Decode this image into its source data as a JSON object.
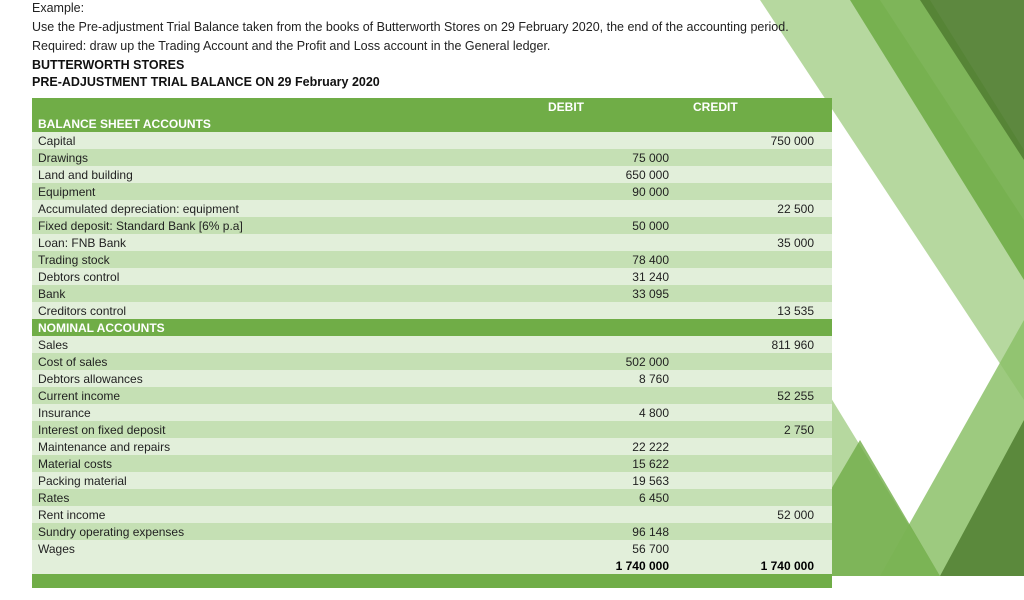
{
  "intro": {
    "line0": "Example:",
    "line1": "Use the Pre-adjustment Trial Balance taken from the books of Butterworth Stores on 29 February 2020, the end of the accounting period.",
    "line2": "Required: draw up the Trading Account and the Profit and Loss account in the General ledger.",
    "bold1": "BUTTERWORTH STORES",
    "bold2": "PRE-ADJUSTMENT TRIAL BALANCE ON 29 February 2020"
  },
  "table": {
    "header": {
      "debit": "DEBIT",
      "credit": "CREDIT"
    },
    "section1": "BALANCE SHEET ACCOUNTS",
    "section2": "NOMINAL ACCOUNTS",
    "rows1": [
      {
        "label": "Capital",
        "debit": "",
        "credit": "750 000",
        "shade": "light"
      },
      {
        "label": "Drawings",
        "debit": "75 000",
        "credit": "",
        "shade": "dark"
      },
      {
        "label": "Land and building",
        "debit": "650 000",
        "credit": "",
        "shade": "light"
      },
      {
        "label": "Equipment",
        "debit": "90 000",
        "credit": "",
        "shade": "dark"
      },
      {
        "label": "Accumulated depreciation: equipment",
        "debit": "",
        "credit": "22 500",
        "shade": "light"
      },
      {
        "label": "Fixed deposit: Standard Bank [6% p.a]",
        "debit": "50 000",
        "credit": "",
        "shade": "dark"
      },
      {
        "label": "Loan: FNB Bank",
        "debit": "",
        "credit": "35 000",
        "shade": "light"
      },
      {
        "label": "Trading stock",
        "debit": "78 400",
        "credit": "",
        "shade": "dark"
      },
      {
        "label": "Debtors control",
        "debit": "31 240",
        "credit": "",
        "shade": "light"
      },
      {
        "label": "Bank",
        "debit": "33 095",
        "credit": "",
        "shade": "dark"
      },
      {
        "label": "Creditors control",
        "debit": "",
        "credit": "13 535",
        "shade": "light"
      }
    ],
    "rows2": [
      {
        "label": "Sales",
        "debit": "",
        "credit": "811 960",
        "shade": "light"
      },
      {
        "label": "Cost of sales",
        "debit": "502 000",
        "credit": "",
        "shade": "dark"
      },
      {
        "label": "Debtors allowances",
        "debit": "8 760",
        "credit": "",
        "shade": "light"
      },
      {
        "label": "Current income",
        "debit": "",
        "credit": "52 255",
        "shade": "dark"
      },
      {
        "label": "Insurance",
        "debit": "4 800",
        "credit": "",
        "shade": "light"
      },
      {
        "label": "Interest on fixed deposit",
        "debit": "",
        "credit": "2 750",
        "shade": "dark"
      },
      {
        "label": "Maintenance and repairs",
        "debit": "22 222",
        "credit": "",
        "shade": "light"
      },
      {
        "label": "Material costs",
        "debit": "15 622",
        "credit": "",
        "shade": "dark"
      },
      {
        "label": "Packing material",
        "debit": "19 563",
        "credit": "",
        "shade": "light"
      },
      {
        "label": "Rates",
        "debit": "6 450",
        "credit": "",
        "shade": "dark"
      },
      {
        "label": "Rent income",
        "debit": "",
        "credit": "52 000",
        "shade": "light"
      },
      {
        "label": "Sundry operating expenses",
        "debit": "96 148",
        "credit": "",
        "shade": "dark"
      },
      {
        "label": "Wages",
        "debit": "56 700",
        "credit": "",
        "shade": "light"
      }
    ],
    "totals": {
      "label": "",
      "debit": "1 740 000",
      "credit": "1 740 000"
    }
  },
  "colors": {
    "green_primary": "#70ad47",
    "green_dark_shade": "#c5e0b4",
    "green_light_shade": "#e2efda",
    "deco_green_light": "#a9d18e",
    "deco_green_mid": "#8cc168",
    "deco_green_dark": "#548235"
  }
}
